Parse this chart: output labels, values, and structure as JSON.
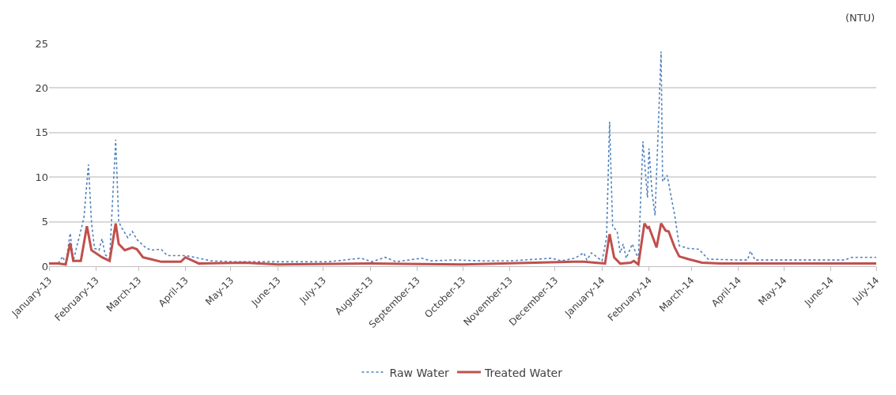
{
  "chart_data": {
    "type": "line",
    "annotations": [
      "(NTU)"
    ],
    "xlim": [
      "2013-01",
      "2014-07"
    ],
    "xticks": [
      {
        "value": "2013-01",
        "label": "January-13"
      },
      {
        "value": "2013-02",
        "label": "February-13"
      },
      {
        "value": "2013-03",
        "label": "March-13"
      },
      {
        "value": "2013-04",
        "label": "April-13"
      },
      {
        "value": "2013-05",
        "label": "May-13"
      },
      {
        "value": "2013-06",
        "label": "June-13"
      },
      {
        "value": "2013-07",
        "label": "July-13"
      },
      {
        "value": "2013-08",
        "label": "August-13"
      },
      {
        "value": "2013-09",
        "label": "September-13"
      },
      {
        "value": "2013-10",
        "label": "October-13"
      },
      {
        "value": "2013-11",
        "label": "November-13"
      },
      {
        "value": "2013-12",
        "label": "December-13"
      },
      {
        "value": "2014-01",
        "label": "January-14"
      },
      {
        "value": "2014-02",
        "label": "February-14"
      },
      {
        "value": "2014-03",
        "label": "March-14"
      },
      {
        "value": "2014-04",
        "label": "April-14"
      },
      {
        "value": "2014-05",
        "label": "May-14"
      },
      {
        "value": "2014-06",
        "label": "June-14"
      },
      {
        "value": "2014-07",
        "label": "July-14"
      }
    ],
    "ylim": [
      0,
      25
    ],
    "yticks": [
      0,
      5,
      10,
      15,
      20,
      25
    ],
    "grid": "y",
    "legend": "bottom",
    "marker": "none",
    "series": [
      {
        "name": "Raw Water",
        "color": "#4f81bd",
        "line_style": "dotted",
        "x": [
          "2013-01-01",
          "2013-01-07",
          "2013-01-10",
          "2013-01-12",
          "2013-01-15",
          "2013-01-17",
          "2013-01-24",
          "2013-01-27",
          "2013-01-29",
          "2013-01-31",
          "2013-02-03",
          "2013-02-05",
          "2013-02-07",
          "2013-02-10",
          "2013-02-14",
          "2013-02-16",
          "2013-02-18",
          "2013-02-22",
          "2013-02-25",
          "2013-02-28",
          "2013-03-05",
          "2013-03-09",
          "2013-03-16",
          "2013-03-20",
          "2013-04-01",
          "2013-04-10",
          "2013-04-18",
          "2013-05-03",
          "2013-06-03",
          "2013-07-04",
          "2013-07-26",
          "2013-08-02",
          "2013-08-11",
          "2013-08-18",
          "2013-09-04",
          "2013-09-10",
          "2013-09-25",
          "2013-10-15",
          "2013-11-01",
          "2013-11-29",
          "2013-12-05",
          "2013-12-14",
          "2013-12-20",
          "2013-12-22",
          "2013-12-25",
          "2014-01-01",
          "2014-01-04",
          "2014-01-06",
          "2014-01-08",
          "2014-01-11",
          "2014-01-13",
          "2014-01-15",
          "2014-01-17",
          "2014-01-21",
          "2014-01-25",
          "2014-01-28",
          "2014-01-31",
          "2014-02-01",
          "2014-02-03",
          "2014-02-05",
          "2014-02-09",
          "2014-02-10",
          "2014-02-13",
          "2014-02-18",
          "2014-02-21",
          "2014-02-27",
          "2014-03-06",
          "2014-03-12",
          "2014-04-01",
          "2014-04-07",
          "2014-04-09",
          "2014-04-12",
          "2014-05-10",
          "2014-06-10",
          "2014-06-15",
          "2014-07-01"
        ],
        "values": [
          0.3,
          0.3,
          1.1,
          0.3,
          3.7,
          0.6,
          5.4,
          11.4,
          5.0,
          2.0,
          1.8,
          3.1,
          1.3,
          0.9,
          14.2,
          5.0,
          4.3,
          3.2,
          3.9,
          3.0,
          2.2,
          1.8,
          1.9,
          1.2,
          1.2,
          0.9,
          0.6,
          0.5,
          0.5,
          0.5,
          0.9,
          0.5,
          1.0,
          0.5,
          0.9,
          0.6,
          0.7,
          0.6,
          0.6,
          0.9,
          0.6,
          0.9,
          1.5,
          0.7,
          1.5,
          0.6,
          3.2,
          16.2,
          4.5,
          3.9,
          1.5,
          2.5,
          0.9,
          2.5,
          0.8,
          14.0,
          7.7,
          13.2,
          8.3,
          5.7,
          24.1,
          9.5,
          10.2,
          5.7,
          2.3,
          2.0,
          1.9,
          0.8,
          0.7,
          0.7,
          1.7,
          0.7,
          0.7,
          0.7,
          1.0,
          1.0
        ]
      },
      {
        "name": "Treated Water",
        "color": "#c0504d",
        "line_style": "solid",
        "x": [
          "2013-01-01",
          "2013-01-07",
          "2013-01-12",
          "2013-01-15",
          "2013-01-17",
          "2013-01-22",
          "2013-01-26",
          "2013-01-29",
          "2013-02-05",
          "2013-02-10",
          "2013-02-14",
          "2013-02-16",
          "2013-02-20",
          "2013-02-25",
          "2013-02-28",
          "2013-03-04",
          "2013-03-09",
          "2013-03-16",
          "2013-03-29",
          "2013-04-01",
          "2013-04-10",
          "2013-05-10",
          "2013-06-01",
          "2013-08-01",
          "2013-10-01",
          "2013-12-14",
          "2013-12-20",
          "2014-01-03",
          "2014-01-06",
          "2014-01-09",
          "2014-01-13",
          "2014-01-20",
          "2014-01-22",
          "2014-01-25",
          "2014-01-29",
          "2014-01-31",
          "2014-02-01",
          "2014-02-06",
          "2014-02-09",
          "2014-02-12",
          "2014-02-14",
          "2014-02-18",
          "2014-02-21",
          "2014-02-27",
          "2014-03-08",
          "2014-03-20",
          "2014-07-01"
        ],
        "values": [
          0.3,
          0.3,
          0.2,
          2.6,
          0.6,
          0.6,
          4.5,
          1.8,
          1.0,
          0.6,
          4.8,
          2.5,
          1.8,
          2.1,
          1.9,
          1.0,
          0.8,
          0.5,
          0.5,
          1.0,
          0.3,
          0.4,
          0.2,
          0.3,
          0.2,
          0.5,
          0.5,
          0.3,
          3.6,
          1.0,
          0.3,
          0.4,
          0.6,
          0.2,
          4.8,
          4.3,
          4.4,
          2.1,
          4.8,
          4.0,
          3.9,
          2.1,
          1.1,
          0.8,
          0.4,
          0.3,
          0.3
        ]
      }
    ]
  }
}
